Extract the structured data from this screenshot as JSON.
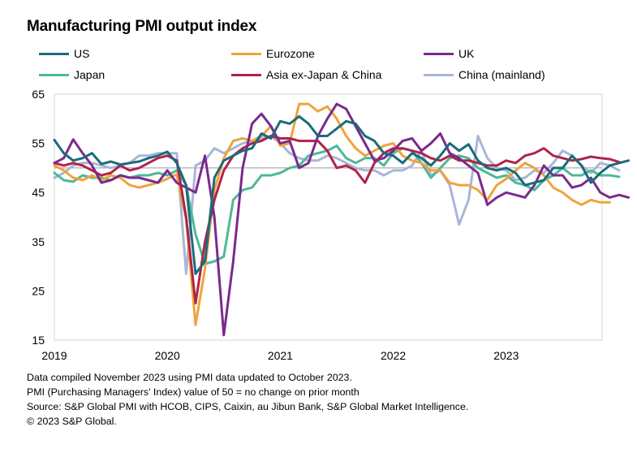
{
  "title": "Manufacturing PMI output index",
  "notes": [
    "Data compiled November 2023 using PMI data updated to October 2023.",
    "PMI (Purchasing Managers' Index) value of 50 = no change on prior month",
    "Source: S&P Global PMI with HCOB, CIPS, Caixin, au Jibun Bank, S&P Global Market Intelligence.",
    "© 2023 S&P Global."
  ],
  "chart_data": {
    "type": "line",
    "title": "Manufacturing PMI output index",
    "xlabel": "",
    "ylabel": "",
    "ylim": [
      15,
      65
    ],
    "yticks": [
      15,
      25,
      35,
      45,
      55,
      65
    ],
    "reference_line": 50,
    "x_start": "2019-01",
    "x_end": "2023-10",
    "x_tick_labels": [
      "2019",
      "2020",
      "2021",
      "2022",
      "2023"
    ],
    "legend_position": "top",
    "grid": false,
    "series": [
      {
        "name": "US",
        "color": "#1a6b7c",
        "values": [
          55.7,
          53.0,
          51.5,
          52.0,
          53.0,
          50.8,
          51.3,
          50.7,
          51.0,
          51.3,
          52.0,
          52.5,
          53.3,
          51.0,
          46.5,
          28.5,
          31.0,
          48.0,
          51.5,
          52.5,
          53.5,
          54.0,
          57.0,
          56.0,
          59.5,
          59.0,
          60.5,
          59.0,
          56.5,
          56.5,
          58.0,
          59.5,
          59.0,
          56.5,
          55.5,
          53.0,
          52.5,
          51.0,
          53.0,
          52.0,
          50.5,
          52.5,
          55.0,
          53.5,
          54.8,
          51.5,
          50.0,
          49.5,
          50.0,
          49.0,
          46.5,
          47.0,
          47.5,
          50.0,
          50.0,
          52.5,
          50.5,
          47.0,
          49.0,
          50.5,
          51.0,
          51.5
        ]
      },
      {
        "name": "Eurozone",
        "color": "#f0a33b",
        "values": [
          50.5,
          49.5,
          48.0,
          47.5,
          48.5,
          47.5,
          48.5,
          48.0,
          46.5,
          46.0,
          46.5,
          47.0,
          47.8,
          48.7,
          39.5,
          18.1,
          29.5,
          45.5,
          52.0,
          55.5,
          56.0,
          55.5,
          56.5,
          58.5,
          54.5,
          55.0,
          63.0,
          63.0,
          61.5,
          62.5,
          60.0,
          56.5,
          54.0,
          52.5,
          53.5,
          54.5,
          55.0,
          52.5,
          51.5,
          51.0,
          49.5,
          49.5,
          47.0,
          46.5,
          46.5,
          45.5,
          43.5,
          46.5,
          47.8,
          49.5,
          51.0,
          50.0,
          48.5,
          46.0,
          45.0,
          43.5,
          42.5,
          43.5,
          43.0,
          43.0
        ]
      },
      {
        "name": "UK",
        "color": "#7a2a8c",
        "values": [
          51.0,
          52.0,
          55.8,
          53.0,
          50.5,
          47.0,
          47.5,
          48.5,
          48.0,
          48.0,
          47.5,
          47.0,
          49.5,
          47.0,
          46.0,
          45.0,
          52.5,
          40.0,
          16.0,
          31.0,
          50.0,
          59.0,
          61.0,
          58.5,
          55.0,
          55.5,
          50.0,
          51.0,
          56.5,
          60.0,
          63.0,
          62.0,
          58.5,
          55.0,
          51.5,
          52.0,
          53.5,
          55.5,
          56.0,
          53.5,
          55.0,
          57.0,
          53.0,
          52.0,
          50.5,
          49.0,
          42.5,
          44.0,
          45.0,
          44.5,
          44.0,
          46.5,
          50.5,
          48.5,
          48.5,
          46.0,
          46.5,
          48.0,
          45.0,
          44.0,
          44.5,
          44.0
        ]
      },
      {
        "name": "Japan",
        "color": "#4fb897",
        "values": [
          49.0,
          47.5,
          47.2,
          48.5,
          48.0,
          48.0,
          47.5,
          48.5,
          48.0,
          48.5,
          48.5,
          49.0,
          48.5,
          49.5,
          46.5,
          36.5,
          30.5,
          31.0,
          32.0,
          43.5,
          45.5,
          46.0,
          48.5,
          48.5,
          49.0,
          50.0,
          50.5,
          52.5,
          53.0,
          53.5,
          54.5,
          52.0,
          51.0,
          52.0,
          52.0,
          50.5,
          53.0,
          54.0,
          53.5,
          51.0,
          48.0,
          50.0,
          52.0,
          52.5,
          52.0,
          50.0,
          49.0,
          48.0,
          48.5,
          47.0,
          46.5,
          45.5,
          47.5,
          48.5,
          50.0,
          48.5,
          48.5,
          49.5,
          48.5,
          48.5,
          48.2
        ]
      },
      {
        "name": "Asia ex-Japan & China",
        "color": "#b0234a",
        "values": [
          51.0,
          50.5,
          51.0,
          50.5,
          49.5,
          48.5,
          49.0,
          50.5,
          49.5,
          50.0,
          51.0,
          52.0,
          52.5,
          51.5,
          40.0,
          22.5,
          35.0,
          43.5,
          49.5,
          52.5,
          54.0,
          55.0,
          55.5,
          56.5,
          56.0,
          56.0,
          55.5,
          55.5,
          55.5,
          53.5,
          50.0,
          50.5,
          49.5,
          47.0,
          51.0,
          53.0,
          54.0,
          54.0,
          53.5,
          53.0,
          52.0,
          51.5,
          52.5,
          51.5,
          51.5,
          51.0,
          50.5,
          50.5,
          51.5,
          51.0,
          52.5,
          53.0,
          54.0,
          52.5,
          52.0,
          51.5,
          51.8,
          52.3,
          52.0,
          51.8,
          51.2
        ]
      },
      {
        "name": "China (mainland)",
        "color": "#a9b6d8",
        "values": [
          48.0,
          49.0,
          50.5,
          51.0,
          51.0,
          50.5,
          50.0,
          50.5,
          51.0,
          52.5,
          52.5,
          53.0,
          53.0,
          53.0,
          28.5,
          50.5,
          51.5,
          54.0,
          53.0,
          54.0,
          55.0,
          55.5,
          56.0,
          56.5,
          55.0,
          53.0,
          52.0,
          51.5,
          51.5,
          52.5,
          52.0,
          51.0,
          50.0,
          49.5,
          49.5,
          48.5,
          49.5,
          49.5,
          50.5,
          53.5,
          48.5,
          49.5,
          46.5,
          38.5,
          43.5,
          56.5,
          52.0,
          50.0,
          49.5,
          47.5,
          48.0,
          49.5,
          49.0,
          51.0,
          53.5,
          52.5,
          50.5,
          49.0,
          51.0,
          50.5,
          49.5
        ]
      }
    ]
  }
}
